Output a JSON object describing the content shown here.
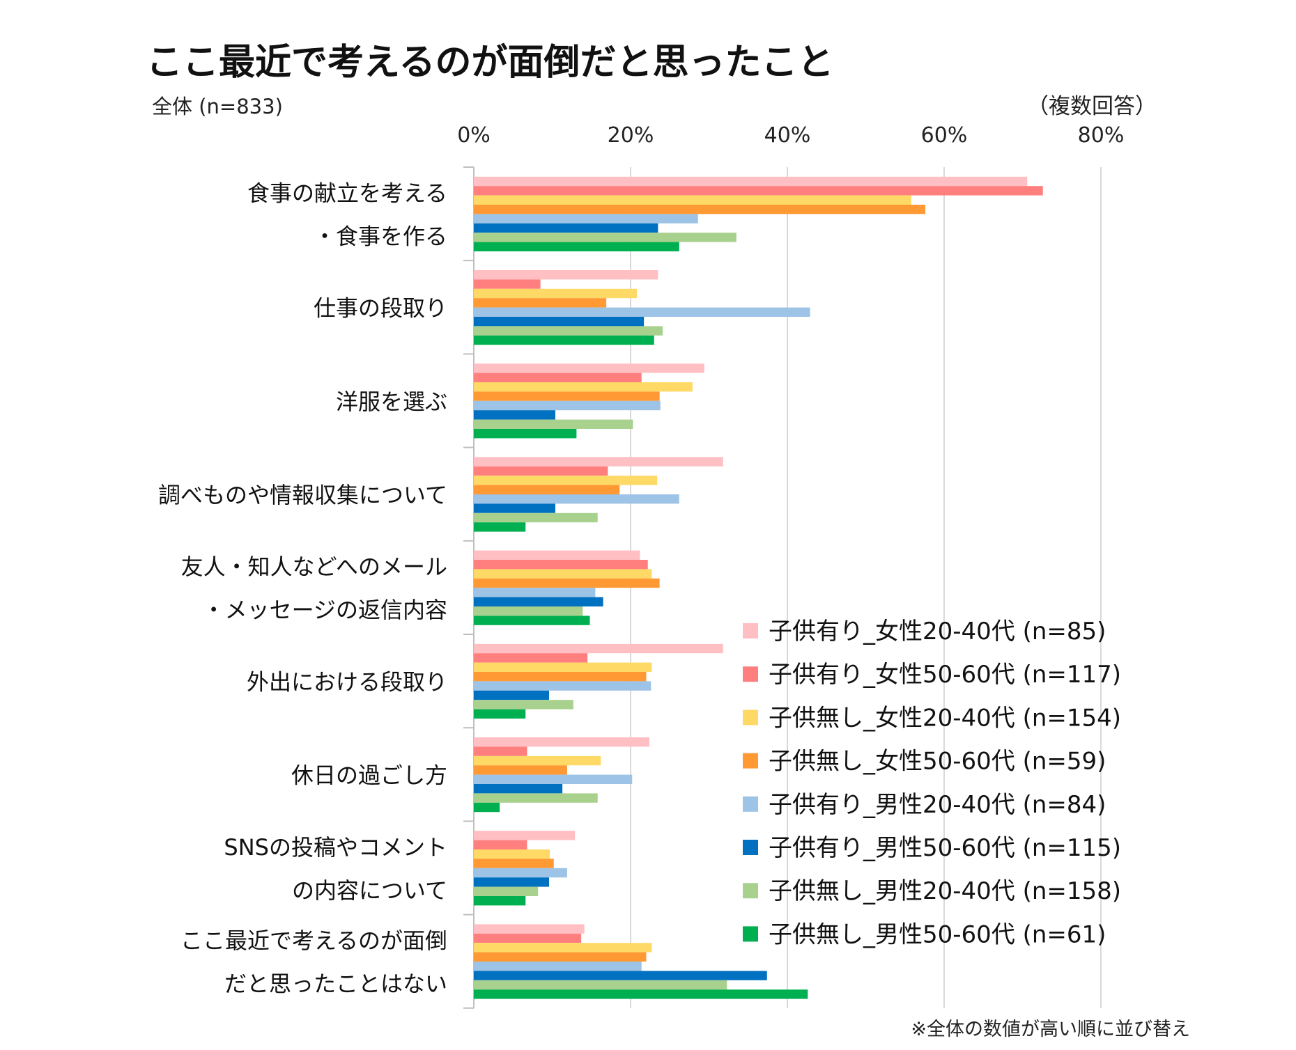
{
  "chart_data": {
    "type": "bar",
    "orientation": "horizontal",
    "title": "ここ最近で考えるのが面倒だと思ったこと",
    "subtitle": "全体 (n=833)",
    "answer_type": "（複数回答）",
    "note": "※全体の数値が高い順に並び替え",
    "x_ticks": [
      "0%",
      "20%",
      "40%",
      "60%",
      "80%"
    ],
    "x_tick_values": [
      0,
      20,
      40,
      60,
      80
    ],
    "xlim": [
      0,
      88
    ],
    "grid": true,
    "legend_position": "bottom-right",
    "categories": [
      [
        "食事の献立を考える",
        "・食事を作る"
      ],
      [
        "仕事の段取り"
      ],
      [
        "洋服を選ぶ"
      ],
      [
        "調べものや情報収集について"
      ],
      [
        "友人・知人などへのメール",
        "・メッセージの返信内容"
      ],
      [
        "外出における段取り"
      ],
      [
        "休日の過ごし方"
      ],
      [
        "SNSの投稿やコメント",
        "の内容について"
      ],
      [
        "ここ最近で考えるのが面倒",
        "だと思ったことはない"
      ]
    ],
    "series": [
      {
        "name": "子供有り_女性20-40代 (n=85)",
        "color": "#FFBFC3",
        "values": [
          70.6,
          23.5,
          29.4,
          31.8,
          21.2,
          31.8,
          22.4,
          12.9,
          14.1
        ]
      },
      {
        "name": "子供有り_女性50-60代 (n=117)",
        "color": "#FF7F7F",
        "values": [
          72.6,
          8.5,
          21.4,
          17.1,
          22.2,
          14.5,
          6.8,
          6.8,
          13.7
        ]
      },
      {
        "name": "子供無し_女性20-40代 (n=154)",
        "color": "#FFD966",
        "values": [
          55.8,
          20.8,
          27.9,
          23.4,
          22.7,
          22.7,
          16.2,
          9.7,
          22.7
        ]
      },
      {
        "name": "子供無し_女性50-60代 (n=59)",
        "color": "#FF9933",
        "values": [
          57.6,
          16.9,
          23.7,
          18.6,
          23.7,
          22.0,
          11.9,
          10.2,
          22.0
        ]
      },
      {
        "name": "子供有り_男性20-40代 (n=84)",
        "color": "#9DC3E6",
        "values": [
          28.6,
          42.9,
          23.8,
          26.2,
          15.5,
          22.6,
          20.2,
          11.9,
          21.4
        ]
      },
      {
        "name": "子供有り_男性50-60代 (n=115)",
        "color": "#0070C0",
        "values": [
          23.5,
          21.7,
          10.4,
          10.4,
          16.5,
          9.6,
          11.3,
          9.6,
          37.4
        ]
      },
      {
        "name": "子供無し_男性20-40代 (n=158)",
        "color": "#A9D18E",
        "values": [
          33.5,
          24.1,
          20.3,
          15.8,
          13.9,
          12.7,
          15.8,
          8.2,
          32.3
        ]
      },
      {
        "name": "子供無し_男性50-60代 (n=61)",
        "color": "#00B050",
        "values": [
          26.2,
          23.0,
          13.1,
          6.6,
          14.8,
          6.6,
          3.3,
          6.6,
          42.6
        ]
      }
    ]
  }
}
